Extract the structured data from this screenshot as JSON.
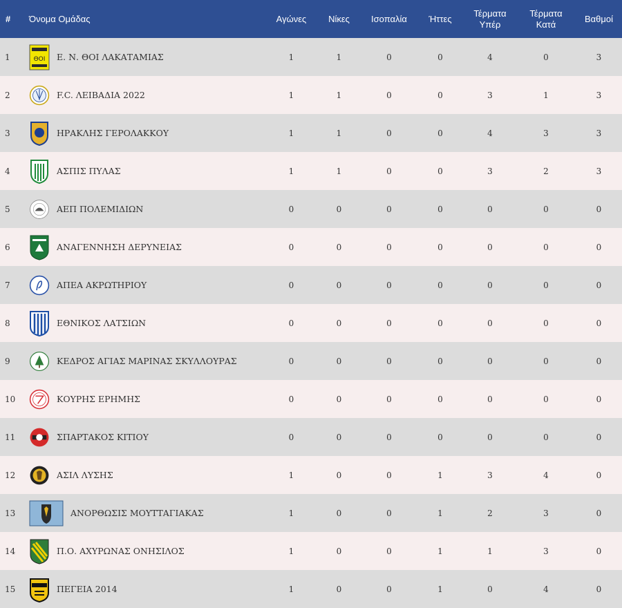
{
  "header": {
    "rank": "#",
    "team": "Όνομα Ομάδας",
    "played": "Αγώνες",
    "wins": "Νίκες",
    "draws": "Ισοπαλία",
    "losses": "Ήττες",
    "goals_for_l1": "Τέρματα",
    "goals_for_l2": "Υπέρ",
    "goals_against_l1": "Τέρματα",
    "goals_against_l2": "Κατά",
    "points": "Βαθμοί"
  },
  "colors": {
    "header_bg": "#2e4f93",
    "row_odd": "#dcdcdc",
    "row_even": "#f7eeee"
  },
  "rows": [
    {
      "rank": "1",
      "team": "Ε. Ν. ΘΟΙ ΛΑΚΑΤΑΜΙΑΣ",
      "logo": "thoi-lakatamias-logo-icon",
      "played": "1",
      "wins": "1",
      "draws": "0",
      "losses": "0",
      "gf": "4",
      "ga": "0",
      "pts": "3"
    },
    {
      "rank": "2",
      "team": "F.C. ΛΕΙΒΑΔΙΑ 2022",
      "logo": "fc-leivadia-logo-icon",
      "played": "1",
      "wins": "1",
      "draws": "0",
      "losses": "0",
      "gf": "3",
      "ga": "1",
      "pts": "3"
    },
    {
      "rank": "3",
      "team": "ΗΡΑΚΛΗΣ ΓΕΡΟΛΑΚΚΟΥ",
      "logo": "iraklis-gerolakkou-logo-icon",
      "played": "1",
      "wins": "1",
      "draws": "0",
      "losses": "0",
      "gf": "4",
      "ga": "3",
      "pts": "3"
    },
    {
      "rank": "4",
      "team": "ΑΣΠΙΣ ΠΥΛΑΣ",
      "logo": "aspis-pylas-logo-icon",
      "played": "1",
      "wins": "1",
      "draws": "0",
      "losses": "0",
      "gf": "3",
      "ga": "2",
      "pts": "3"
    },
    {
      "rank": "5",
      "team": "ΑΕΠ ΠΟΛΕΜΙΔΙΩΝ",
      "logo": "aep-polemidion-logo-icon",
      "played": "0",
      "wins": "0",
      "draws": "0",
      "losses": "0",
      "gf": "0",
      "ga": "0",
      "pts": "0"
    },
    {
      "rank": "6",
      "team": "ΑΝΑΓΕΝΝΗΣΗ ΔΕΡΥΝΕΙΑΣ",
      "logo": "anagennisi-deryneias-logo-icon",
      "played": "0",
      "wins": "0",
      "draws": "0",
      "losses": "0",
      "gf": "0",
      "ga": "0",
      "pts": "0"
    },
    {
      "rank": "7",
      "team": "ΑΠΕΑ ΑΚΡΩΤΗΡΙΟΥ",
      "logo": "apea-akrotiriou-logo-icon",
      "played": "0",
      "wins": "0",
      "draws": "0",
      "losses": "0",
      "gf": "0",
      "ga": "0",
      "pts": "0"
    },
    {
      "rank": "8",
      "team": "ΕΘΝΙΚΟΣ ΛΑΤΣΙΩΝ",
      "logo": "ethnikos-latsion-logo-icon",
      "played": "0",
      "wins": "0",
      "draws": "0",
      "losses": "0",
      "gf": "0",
      "ga": "0",
      "pts": "0"
    },
    {
      "rank": "9",
      "team": "ΚΕΔΡΟΣ ΑΓΙΑΣ ΜΑΡΙΝΑΣ ΣΚΥΛΛΟΥΡΑΣ",
      "logo": "kedros-logo-icon",
      "played": "0",
      "wins": "0",
      "draws": "0",
      "losses": "0",
      "gf": "0",
      "ga": "0",
      "pts": "0"
    },
    {
      "rank": "10",
      "team": "ΚΟΥΡΗΣ ΕΡΗΜΗΣ",
      "logo": "kouris-erimis-logo-icon",
      "played": "0",
      "wins": "0",
      "draws": "0",
      "losses": "0",
      "gf": "0",
      "ga": "0",
      "pts": "0"
    },
    {
      "rank": "11",
      "team": "ΣΠΑΡΤΑΚΟΣ ΚΙΤΙΟΥ",
      "logo": "spartakos-kitiou-logo-icon",
      "played": "0",
      "wins": "0",
      "draws": "0",
      "losses": "0",
      "gf": "0",
      "ga": "0",
      "pts": "0"
    },
    {
      "rank": "12",
      "team": "ΑΣΙΛ ΛΥΣΗΣ",
      "logo": "asil-lysis-logo-icon",
      "played": "1",
      "wins": "0",
      "draws": "0",
      "losses": "1",
      "gf": "3",
      "ga": "4",
      "pts": "0"
    },
    {
      "rank": "13",
      "team": "ΑΝΟΡΘΩΣΙΣ ΜΟΥΤΤΑΓΙΑΚΑΣ",
      "logo": "anorthosis-mouttagiakas-logo-icon",
      "played": "1",
      "wins": "0",
      "draws": "0",
      "losses": "1",
      "gf": "2",
      "ga": "3",
      "pts": "0"
    },
    {
      "rank": "14",
      "team": "Π.Ο. ΑΧΥΡΩΝΑΣ ΟΝΗΣΙΛΟΣ",
      "logo": "achyronas-onisilos-logo-icon",
      "played": "1",
      "wins": "0",
      "draws": "0",
      "losses": "1",
      "gf": "1",
      "ga": "3",
      "pts": "0"
    },
    {
      "rank": "15",
      "team": "ΠΕΓΕΙΑ 2014",
      "logo": "pegeia-logo-icon",
      "played": "1",
      "wins": "0",
      "draws": "0",
      "losses": "1",
      "gf": "0",
      "ga": "4",
      "pts": "0"
    }
  ]
}
